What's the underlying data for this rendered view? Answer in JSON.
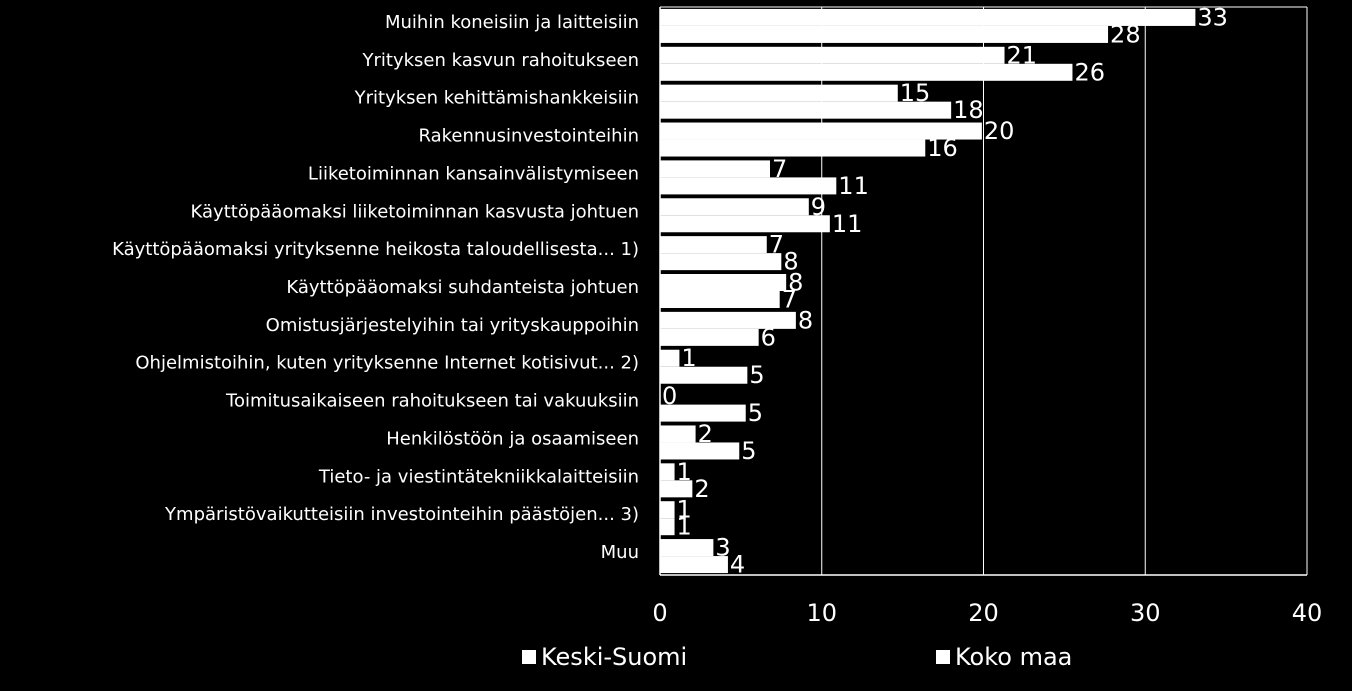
{
  "chart_data": {
    "type": "bar",
    "orientation": "horizontal",
    "categories": [
      "Muihin koneisiin ja laitteisiin",
      "Yrityksen kasvun rahoitukseen",
      "Yrityksen kehittämishankkeisiin",
      "Rakennusinvestointeihin",
      "Liiketoiminnan kansainvälistymiseen",
      "Käyttöpääomaksi liiketoiminnan kasvusta johtuen",
      "Käyttöpääomaksi yrityksenne heikosta taloudellisesta... 1)",
      "Käyttöpääomaksi suhdanteista johtuen",
      "Omistusjärjestelyihin tai yrityskauppoihin",
      "Ohjelmistoihin, kuten yrityksenne Internet kotisivut... 2)",
      "Toimitusaikaiseen rahoitukseen tai vakuuksiin",
      "Henkilöstöön ja osaamiseen",
      "Tieto- ja viestintätekniikkalaitteisiin",
      "Ympäristövaikutteisiin investointeihin päästöjen... 3)",
      "Muu"
    ],
    "series": [
      {
        "name": "Keski-Suomi",
        "values": [
          33.1,
          21.3,
          14.7,
          19.9,
          6.8,
          9.2,
          6.6,
          7.8,
          8.4,
          1.2,
          0,
          2.2,
          0.9,
          0.9,
          3.3
        ],
        "labels": [
          "33",
          "21",
          "15",
          "20",
          "7",
          "9",
          "7",
          "8",
          "8",
          "1",
          "0",
          "2",
          "1",
          "1",
          "3"
        ]
      },
      {
        "name": "Koko maa",
        "values": [
          27.7,
          25.5,
          18.0,
          16.4,
          10.9,
          10.5,
          7.5,
          7.4,
          6.1,
          5.4,
          5.3,
          4.9,
          2.0,
          0.9,
          4.2
        ],
        "labels": [
          "28",
          "26",
          "18",
          "16",
          "11",
          "11",
          "8",
          "7",
          "6",
          "5",
          "5",
          "5",
          "2",
          "1",
          "4"
        ]
      }
    ],
    "xlim": [
      0,
      40
    ],
    "xticks": [
      "0",
      "10",
      "20",
      "30",
      "40"
    ],
    "grid": "vertical",
    "legend": "bottom",
    "colors": {
      "background": "#000000",
      "bars": "#ffffff",
      "text": "#ffffff",
      "grid": "#ffffff"
    }
  }
}
